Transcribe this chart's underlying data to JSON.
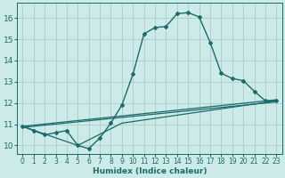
{
  "xlabel": "Humidex (Indice chaleur)",
  "background_color": "#cceae8",
  "grid_color": "#b0d0ce",
  "line_color": "#1a6b6b",
  "xlim": [
    -0.5,
    23.5
  ],
  "ylim": [
    9.6,
    16.7
  ],
  "xticks": [
    0,
    1,
    2,
    3,
    4,
    5,
    6,
    7,
    8,
    9,
    10,
    11,
    12,
    13,
    14,
    15,
    16,
    17,
    18,
    19,
    20,
    21,
    22,
    23
  ],
  "yticks": [
    10,
    11,
    12,
    13,
    14,
    15,
    16
  ],
  "line1_x": [
    0,
    1,
    2,
    3,
    4,
    5,
    6,
    7,
    8,
    9,
    10,
    11,
    12,
    13,
    14,
    15,
    16,
    17,
    18,
    19,
    20,
    21,
    22,
    23
  ],
  "line1_y": [
    10.9,
    10.7,
    10.5,
    10.6,
    10.7,
    10.0,
    9.85,
    10.35,
    11.05,
    11.9,
    13.35,
    15.25,
    15.55,
    15.6,
    16.2,
    16.25,
    16.05,
    14.85,
    13.4,
    13.15,
    13.05,
    12.55,
    12.1,
    12.1
  ],
  "line2_x": [
    0,
    23
  ],
  "line2_y": [
    10.9,
    12.15
  ],
  "line3_x": [
    0,
    5,
    9,
    23
  ],
  "line3_y": [
    10.9,
    10.0,
    11.05,
    12.1
  ],
  "line4_x": [
    0,
    23
  ],
  "line4_y": [
    10.85,
    12.05
  ],
  "tick_fontsize": 5.5,
  "xlabel_fontsize": 6.5
}
